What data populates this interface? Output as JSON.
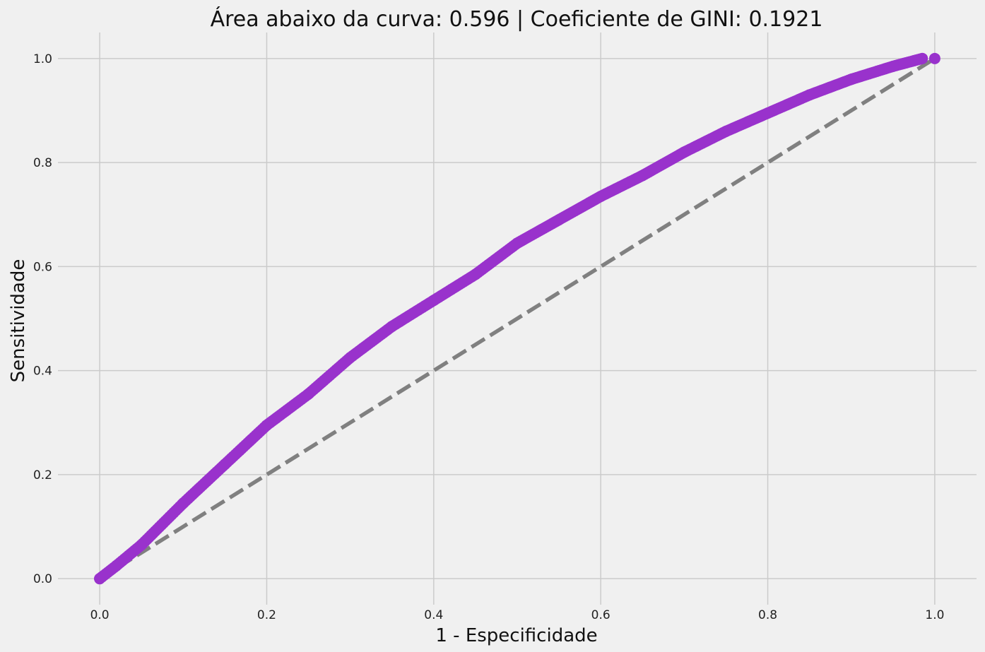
{
  "chart_data": {
    "type": "scatter",
    "title": "Área abaixo da curva: 0.596 | Coeficiente de GINI: 0.1921",
    "xlabel": "1 - Especificidade",
    "ylabel": "Sensitividade",
    "xlim": [
      -0.05,
      1.05
    ],
    "ylim": [
      -0.05,
      1.05
    ],
    "xticks": [
      0.0,
      0.2,
      0.4,
      0.6,
      0.8,
      1.0
    ],
    "yticks": [
      0.0,
      0.2,
      0.4,
      0.6,
      0.8,
      1.0
    ],
    "xtick_labels": [
      "0.0",
      "0.2",
      "0.4",
      "0.6",
      "0.8",
      "1.0"
    ],
    "ytick_labels": [
      "0.0",
      "0.2",
      "0.4",
      "0.6",
      "0.8",
      "1.0"
    ],
    "grid": true,
    "legend": "none",
    "background_color": "#f0f0f0",
    "grid_color": "#cbcbcb",
    "series": [
      {
        "kind": "roc_points",
        "color": "#9932cc",
        "x": [
          0.0,
          0.02,
          0.05,
          0.1,
          0.15,
          0.2,
          0.25,
          0.3,
          0.35,
          0.4,
          0.45,
          0.5,
          0.55,
          0.6,
          0.65,
          0.7,
          0.75,
          0.8,
          0.85,
          0.9,
          0.95,
          0.985,
          1.0
        ],
        "y": [
          0.0,
          0.025,
          0.065,
          0.145,
          0.22,
          0.295,
          0.355,
          0.425,
          0.485,
          0.535,
          0.585,
          0.645,
          0.69,
          0.735,
          0.775,
          0.82,
          0.86,
          0.895,
          0.93,
          0.96,
          0.985,
          1.0,
          1.0
        ]
      },
      {
        "kind": "reference_line",
        "color": "#808080",
        "dashed": true,
        "x": [
          0.0,
          1.0
        ],
        "y": [
          0.0,
          1.0
        ]
      }
    ]
  }
}
